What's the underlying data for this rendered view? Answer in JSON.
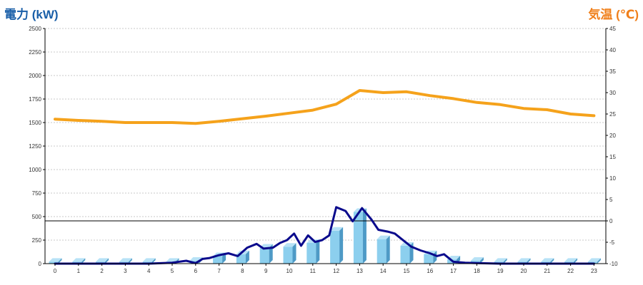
{
  "chart_data": {
    "type": "bar+line",
    "left_axis_title": "電力 (kW)",
    "right_axis_title": "気温 (℃)",
    "left_ylim": [
      0,
      2500
    ],
    "left_ticks": [
      "0",
      "250",
      "500",
      "750",
      "1000",
      "1250",
      "1500",
      "1750",
      "2000",
      "2250",
      "2500"
    ],
    "right_ylim": [
      -10,
      45
    ],
    "right_ticks": [
      "-10",
      "-5",
      "0",
      "5",
      "10",
      "15",
      "20",
      "25",
      "30",
      "35",
      "40",
      "45"
    ],
    "categories": [
      "0",
      "1",
      "2",
      "3",
      "4",
      "5",
      "6",
      "7",
      "8",
      "9",
      "10",
      "11",
      "12",
      "13",
      "14",
      "15",
      "16",
      "17",
      "18",
      "19",
      "20",
      "21",
      "22",
      "23"
    ],
    "power_bars": [
      20,
      20,
      20,
      20,
      20,
      20,
      30,
      80,
      100,
      170,
      180,
      220,
      350,
      550,
      260,
      190,
      100,
      45,
      30,
      20,
      20,
      20,
      20,
      20
    ],
    "power_line": {
      "x": [
        0,
        1,
        2,
        3,
        4,
        5,
        5.6,
        6,
        6.3,
        6.6,
        7,
        7.4,
        7.8,
        8.2,
        8.6,
        8.9,
        9.3,
        9.6,
        9.9,
        10.2,
        10.5,
        10.8,
        11.1,
        11.4,
        11.7,
        12,
        12.4,
        12.7,
        13.1,
        13.5,
        13.8,
        14.2,
        14.5,
        14.8,
        15.2,
        15.6,
        16,
        16.3,
        16.6,
        17,
        17.5,
        18,
        19,
        20,
        21,
        22,
        23
      ],
      "y": [
        0,
        0,
        0,
        0,
        0,
        10,
        30,
        5,
        50,
        60,
        90,
        110,
        80,
        170,
        210,
        160,
        170,
        220,
        250,
        320,
        190,
        300,
        230,
        250,
        300,
        600,
        560,
        450,
        590,
        470,
        360,
        340,
        320,
        260,
        180,
        140,
        110,
        80,
        100,
        20,
        10,
        5,
        0,
        0,
        0,
        0,
        0
      ]
    },
    "temperature": {
      "x": [
        0,
        1,
        2,
        3,
        4,
        5,
        6,
        7,
        8,
        9,
        10,
        11,
        12,
        13,
        14,
        15,
        16,
        17,
        18,
        19,
        20,
        21,
        22,
        23
      ],
      "y": [
        23.8,
        23.5,
        23.3,
        23.0,
        23.0,
        23.0,
        22.8,
        23.3,
        23.9,
        24.5,
        25.2,
        25.9,
        27.3,
        30.5,
        30.0,
        30.2,
        29.3,
        28.6,
        27.7,
        27.2,
        26.3,
        26.0,
        25.0,
        24.6
      ]
    },
    "colors": {
      "title_left": "#1a5fa8",
      "title_right": "#f07f1a",
      "bar_front": "#8ccfee",
      "bar_side": "#4e9ac6",
      "bar_top": "#b7e2f6",
      "power_line": "#0a0a8c",
      "temp_line": "#f5a21b",
      "grid": "#c8c8c8",
      "axis": "#000000"
    },
    "grid": true,
    "zero_temp_reference_line": true
  }
}
